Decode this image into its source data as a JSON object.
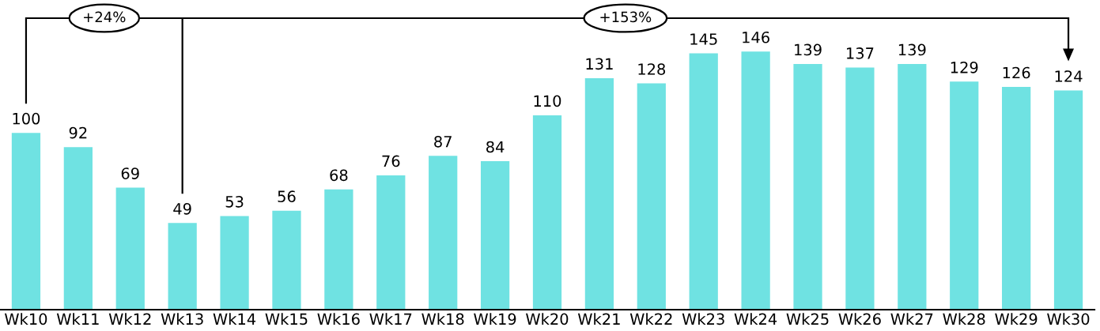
{
  "chart_data": {
    "type": "bar",
    "categories": [
      "Wk10",
      "Wk11",
      "Wk12",
      "Wk13",
      "Wk14",
      "Wk15",
      "Wk16",
      "Wk17",
      "Wk18",
      "Wk19",
      "Wk20",
      "Wk21",
      "Wk22",
      "Wk23",
      "Wk24",
      "Wk25",
      "Wk26",
      "Wk27",
      "Wk28",
      "Wk29",
      "Wk30"
    ],
    "values": [
      100,
      92,
      69,
      49,
      53,
      56,
      68,
      76,
      87,
      84,
      110,
      131,
      128,
      145,
      146,
      139,
      137,
      139,
      129,
      126,
      124
    ],
    "color": "#6fe2e2",
    "data_labels": true,
    "tick_labels": "x",
    "annotations": [
      "+24%",
      "+153%"
    ]
  }
}
